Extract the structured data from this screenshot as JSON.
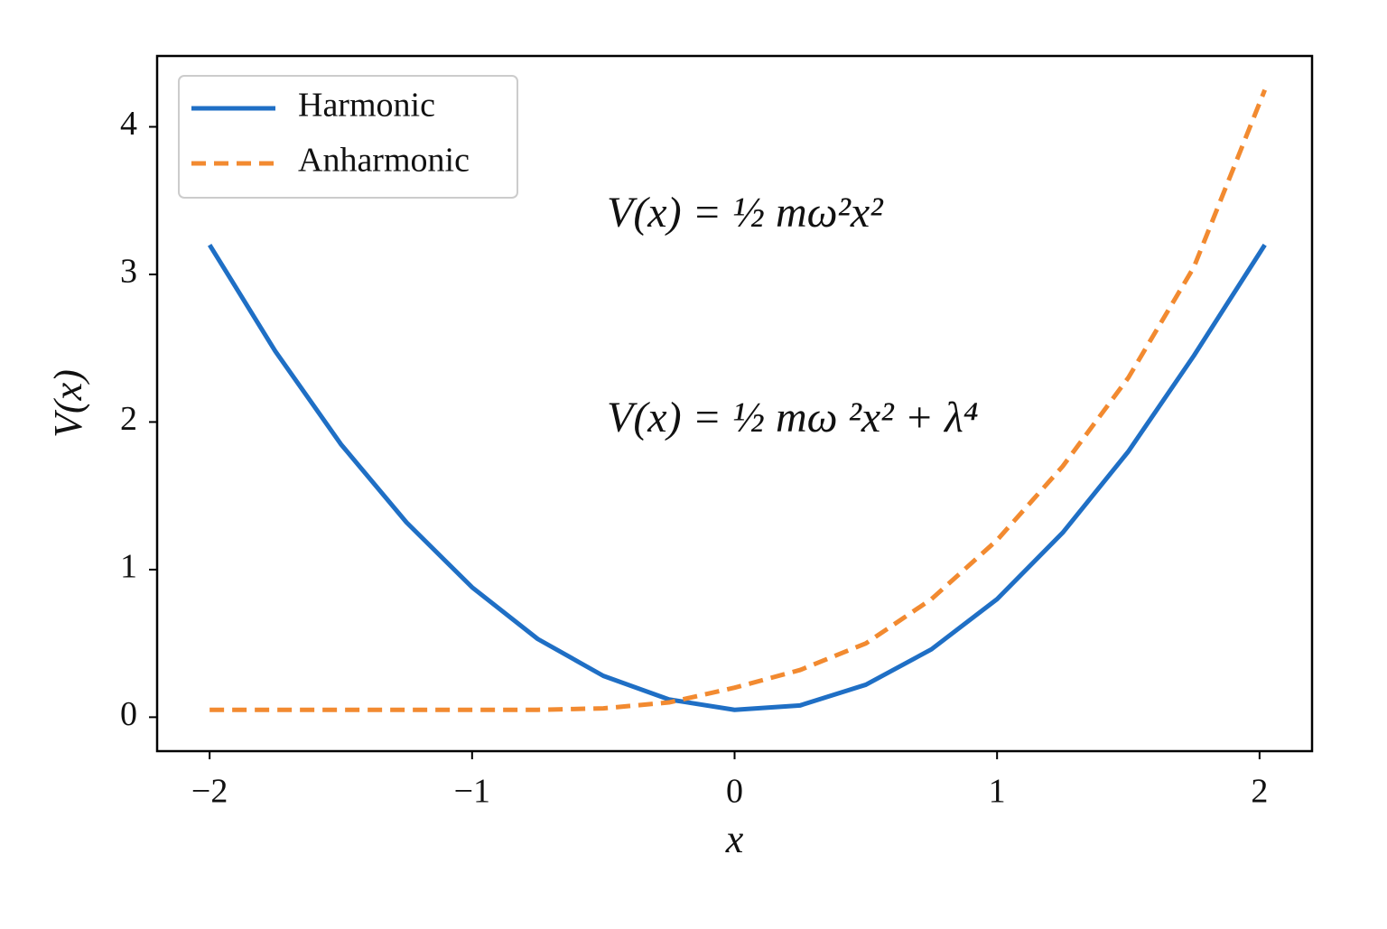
{
  "chart_data": {
    "type": "line",
    "x": [
      -2,
      -1.75,
      -1.5,
      -1.25,
      -1,
      -0.75,
      -0.5,
      -0.25,
      0,
      0.25,
      0.5,
      0.75,
      1,
      1.25,
      1.5,
      1.75,
      2.02
    ],
    "series": [
      {
        "name": "Harmonic",
        "color": "#1f6fc5",
        "style": "solid",
        "values": [
          3.2,
          2.48,
          1.85,
          1.32,
          0.88,
          0.53,
          0.28,
          0.12,
          0.05,
          0.08,
          0.22,
          0.46,
          0.8,
          1.25,
          1.8,
          2.45,
          3.2
        ]
      },
      {
        "name": "Anharmonic",
        "color": "#f28a30",
        "style": "dashed",
        "values": [
          0.05,
          0.05,
          0.05,
          0.05,
          0.05,
          0.05,
          0.06,
          0.1,
          0.2,
          0.32,
          0.5,
          0.8,
          1.2,
          1.7,
          2.3,
          3.05,
          4.25
        ]
      }
    ],
    "xlabel": "x",
    "ylabel": "V(x)",
    "xlim": [
      -2.2,
      2.2
    ],
    "ylim": [
      -0.23,
      4.48
    ],
    "xticks": [
      {
        "value": -2,
        "label": "−2"
      },
      {
        "value": -1,
        "label": "−1"
      },
      0,
      1,
      2
    ],
    "yticks": [
      0,
      1,
      2,
      3,
      4
    ],
    "legend": "upper-left",
    "annotations": [
      "V(x) = ½ mω²x²",
      "V(x) = ½ mω ²x² + λ⁴"
    ]
  }
}
